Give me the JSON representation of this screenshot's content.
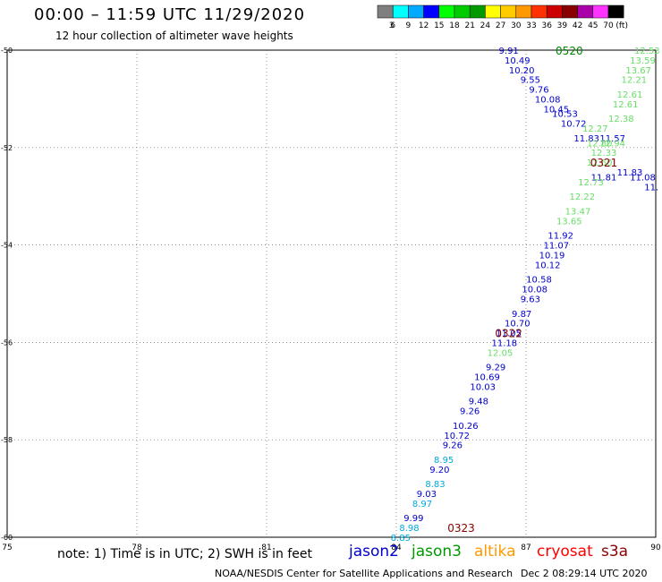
{
  "header": {
    "title": "00:00 – 11:59 UTC 11/29/2020",
    "subtitle": "12 hour collection of altimeter wave heights"
  },
  "color_scale": {
    "unit": "(ft)",
    "bins": [
      {
        "label": "3",
        "color": "#7f7f7f"
      },
      {
        "label": "6",
        "color": "#00ffff"
      },
      {
        "label": "9",
        "color": "#00aaff"
      },
      {
        "label": "12",
        "color": "#0000ff"
      },
      {
        "label": "15",
        "color": "#00ff00"
      },
      {
        "label": "18",
        "color": "#00cc00"
      },
      {
        "label": "21",
        "color": "#009900"
      },
      {
        "label": "24",
        "color": "#ffff00"
      },
      {
        "label": "27",
        "color": "#ffcc00"
      },
      {
        "label": "30",
        "color": "#ff9900"
      },
      {
        "label": "33",
        "color": "#ff3300"
      },
      {
        "label": "36",
        "color": "#cc0000"
      },
      {
        "label": "39",
        "color": "#880000"
      },
      {
        "label": "42",
        "color": "#aa00aa"
      },
      {
        "label": "45",
        "color": "#ff33ff"
      },
      {
        "label": "70",
        "color": "#000000"
      }
    ]
  },
  "map": {
    "lon_ticks": [
      "75",
      "78",
      "81",
      "84",
      "87",
      "90"
    ],
    "lat_ticks": [
      "-50",
      "-52",
      "-54",
      "-56",
      "-58",
      "-60"
    ],
    "lon_range": [
      75,
      90
    ],
    "lat_range": [
      -50,
      -60
    ],
    "grid": true
  },
  "tracks": [
    {
      "label": "0520",
      "color": "#008800",
      "lon": 88.0,
      "lat": -50.0
    },
    {
      "label": "0321",
      "color": "#880000",
      "lon": 88.8,
      "lat": -52.3
    },
    {
      "label": "0322",
      "color": "#880000",
      "lon": 86.6,
      "lat": -55.8
    },
    {
      "label": "0323",
      "color": "#880000",
      "lon": 85.5,
      "lat": -59.8
    }
  ],
  "observations": [
    {
      "v": "9.91",
      "lon": 86.6,
      "lat": -50.0,
      "c": "#0000cc"
    },
    {
      "v": "10.49",
      "lon": 86.8,
      "lat": -50.2,
      "c": "#0000cc"
    },
    {
      "v": "10.20",
      "lon": 86.9,
      "lat": -50.4,
      "c": "#0000cc"
    },
    {
      "v": "9.55",
      "lon": 87.1,
      "lat": -50.6,
      "c": "#0000cc"
    },
    {
      "v": "9.76",
      "lon": 87.3,
      "lat": -50.8,
      "c": "#0000cc"
    },
    {
      "v": "10.08",
      "lon": 87.5,
      "lat": -51.0,
      "c": "#0000cc"
    },
    {
      "v": "10.45",
      "lon": 87.7,
      "lat": -51.2,
      "c": "#0000cc"
    },
    {
      "v": "10.53",
      "lon": 87.9,
      "lat": -51.3,
      "c": "#0000cc"
    },
    {
      "v": "10.72",
      "lon": 88.1,
      "lat": -51.5,
      "c": "#0000cc"
    },
    {
      "v": "11.83",
      "lon": 88.4,
      "lat": -51.8,
      "c": "#0000cc"
    },
    {
      "v": "11.57",
      "lon": 89.0,
      "lat": -51.8,
      "c": "#0000cc"
    },
    {
      "v": "11.81",
      "lon": 88.8,
      "lat": -52.6,
      "c": "#0000cc"
    },
    {
      "v": "11.83",
      "lon": 89.4,
      "lat": -52.5,
      "c": "#0000cc"
    },
    {
      "v": "11.08",
      "lon": 89.7,
      "lat": -52.6,
      "c": "#0000cc"
    },
    {
      "v": "11.",
      "lon": 89.9,
      "lat": -52.8,
      "c": "#0000cc"
    },
    {
      "v": "12.53",
      "lon": 89.8,
      "lat": -50.0,
      "c": "#66dd66"
    },
    {
      "v": "13.59",
      "lon": 89.7,
      "lat": -50.2,
      "c": "#66dd66"
    },
    {
      "v": "13.67",
      "lon": 89.6,
      "lat": -50.4,
      "c": "#66dd66"
    },
    {
      "v": "12.21",
      "lon": 89.5,
      "lat": -50.6,
      "c": "#66dd66"
    },
    {
      "v": "12.61",
      "lon": 89.4,
      "lat": -50.9,
      "c": "#66dd66"
    },
    {
      "v": "12.61",
      "lon": 89.3,
      "lat": -51.1,
      "c": "#66dd66"
    },
    {
      "v": "12.38",
      "lon": 89.2,
      "lat": -51.4,
      "c": "#66dd66"
    },
    {
      "v": "12.27",
      "lon": 88.6,
      "lat": -51.6,
      "c": "#66dd66"
    },
    {
      "v": "12.80",
      "lon": 88.7,
      "lat": -51.9,
      "c": "#66dd66"
    },
    {
      "v": "12.94",
      "lon": 89.0,
      "lat": -51.9,
      "c": "#66dd66"
    },
    {
      "v": "12.33",
      "lon": 88.8,
      "lat": -52.1,
      "c": "#66dd66"
    },
    {
      "v": "12.60",
      "lon": 88.7,
      "lat": -52.3,
      "c": "#66dd66"
    },
    {
      "v": "12.73",
      "lon": 88.5,
      "lat": -52.7,
      "c": "#66dd66"
    },
    {
      "v": "12.22",
      "lon": 88.3,
      "lat": -53.0,
      "c": "#66dd66"
    },
    {
      "v": "13.47",
      "lon": 88.2,
      "lat": -53.3,
      "c": "#66dd66"
    },
    {
      "v": "13.65",
      "lon": 88.0,
      "lat": -53.5,
      "c": "#66dd66"
    },
    {
      "v": "11.92",
      "lon": 87.8,
      "lat": -53.8,
      "c": "#0000cc"
    },
    {
      "v": "11.07",
      "lon": 87.7,
      "lat": -54.0,
      "c": "#0000cc"
    },
    {
      "v": "10.19",
      "lon": 87.6,
      "lat": -54.2,
      "c": "#0000cc"
    },
    {
      "v": "10.12",
      "lon": 87.5,
      "lat": -54.4,
      "c": "#0000cc"
    },
    {
      "v": "10.58",
      "lon": 87.3,
      "lat": -54.7,
      "c": "#0000cc"
    },
    {
      "v": "10.08",
      "lon": 87.2,
      "lat": -54.9,
      "c": "#0000cc"
    },
    {
      "v": "9.63",
      "lon": 87.1,
      "lat": -55.1,
      "c": "#0000cc"
    },
    {
      "v": "9.87",
      "lon": 86.9,
      "lat": -55.4,
      "c": "#0000cc"
    },
    {
      "v": "10.70",
      "lon": 86.8,
      "lat": -55.6,
      "c": "#0000cc"
    },
    {
      "v": "11.05",
      "lon": 86.6,
      "lat": -55.8,
      "c": "#0000cc"
    },
    {
      "v": "11.18",
      "lon": 86.5,
      "lat": -56.0,
      "c": "#0000cc"
    },
    {
      "v": "12.05",
      "lon": 86.4,
      "lat": -56.2,
      "c": "#66dd66"
    },
    {
      "v": "9.29",
      "lon": 86.3,
      "lat": -56.5,
      "c": "#0000cc"
    },
    {
      "v": "10.69",
      "lon": 86.1,
      "lat": -56.7,
      "c": "#0000cc"
    },
    {
      "v": "10.03",
      "lon": 86.0,
      "lat": -56.9,
      "c": "#0000cc"
    },
    {
      "v": "9.48",
      "lon": 85.9,
      "lat": -57.2,
      "c": "#0000cc"
    },
    {
      "v": "9.26",
      "lon": 85.7,
      "lat": -57.4,
      "c": "#0000cc"
    },
    {
      "v": "10.26",
      "lon": 85.6,
      "lat": -57.7,
      "c": "#0000cc"
    },
    {
      "v": "10.72",
      "lon": 85.4,
      "lat": -57.9,
      "c": "#0000cc"
    },
    {
      "v": "9.26",
      "lon": 85.3,
      "lat": -58.1,
      "c": "#0000cc"
    },
    {
      "v": "8.95",
      "lon": 85.1,
      "lat": -58.4,
      "c": "#00aadd"
    },
    {
      "v": "9.20",
      "lon": 85.0,
      "lat": -58.6,
      "c": "#0000cc"
    },
    {
      "v": "8.83",
      "lon": 84.9,
      "lat": -58.9,
      "c": "#00aadd"
    },
    {
      "v": "9.03",
      "lon": 84.7,
      "lat": -59.1,
      "c": "#0000cc"
    },
    {
      "v": "8.97",
      "lon": 84.6,
      "lat": -59.3,
      "c": "#00aadd"
    },
    {
      "v": "9.99",
      "lon": 84.4,
      "lat": -59.6,
      "c": "#0000cc"
    },
    {
      "v": "8.98",
      "lon": 84.3,
      "lat": -59.8,
      "c": "#00aadd"
    },
    {
      "v": "8.85",
      "lon": 84.1,
      "lat": -60.0,
      "c": "#00aadd"
    }
  ],
  "footer": {
    "note": "note: 1) Time is in UTC; 2) SWH is in feet",
    "satellites": [
      {
        "name": "jason2",
        "color": "#0000cc"
      },
      {
        "name": "jason3",
        "color": "#009900"
      },
      {
        "name": "altika",
        "color": "#ff9900"
      },
      {
        "name": "cryosat",
        "color": "#ff0000"
      },
      {
        "name": "s3a",
        "color": "#880000"
      }
    ],
    "credit": "NOAA/NESDIS Center for Satellite Applications and Research",
    "timestamp": "Dec  2 08:29:14 UTC 2020"
  }
}
